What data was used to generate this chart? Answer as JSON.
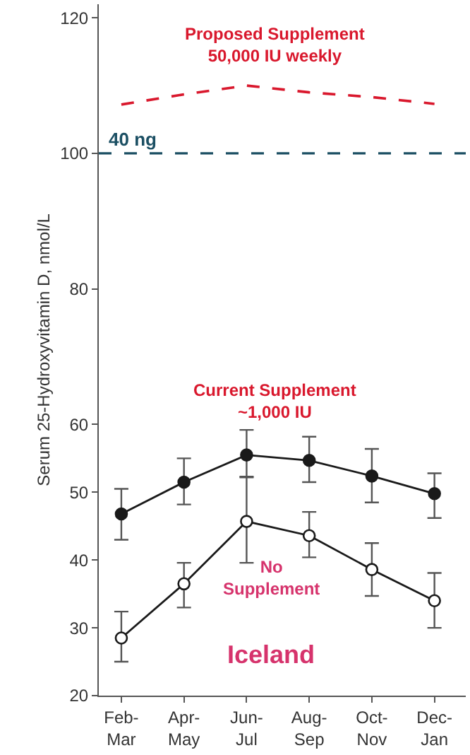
{
  "chart_data": {
    "type": "line",
    "ylabel": "Serum 25-Hydroxyvitamin D, nmol/L",
    "categories": [
      "Feb-Mar",
      "Apr-May",
      "Jun-Jul",
      "Aug-Sep",
      "Oct-Nov",
      "Dec-Jan"
    ],
    "ylim": [
      20,
      122
    ],
    "yticks": [
      20,
      30,
      40,
      50,
      60,
      80,
      100,
      120
    ],
    "legend": false,
    "marker": "circle",
    "series": [
      {
        "name": "Proposed Supplement\n50,000 IU weekly",
        "color": "#d9182d",
        "marker": "none",
        "line_style": "dashed",
        "values": [
          107.2,
          108.7,
          110,
          109,
          108.3,
          107.3
        ]
      },
      {
        "color": "#1a1a1a",
        "values": [
          46.8,
          51.5,
          55.5,
          54.7,
          52.4,
          49.8
        ],
        "errors": [
          [
            43,
            50.5
          ],
          [
            48.2,
            55
          ],
          [
            52.2,
            59.2
          ],
          [
            51.5,
            58.2
          ],
          [
            48.5,
            56.4
          ],
          [
            46.2,
            52.8
          ]
        ]
      },
      {
        "color": "#1a1a1a",
        "values": [
          28.5,
          36.5,
          45.7,
          43.6,
          38.6,
          34
        ],
        "errors": [
          [
            25,
            32.4
          ],
          [
            33,
            39.6
          ],
          [
            39.6,
            52.3
          ],
          [
            40.4,
            47.1
          ],
          [
            34.7,
            42.5
          ],
          [
            30,
            38.1
          ]
        ]
      }
    ],
    "ref_lines": [
      {
        "axis": "y",
        "value": 100,
        "label": "40 ng",
        "color": "#1b4f63",
        "line_style": "dashed"
      }
    ],
    "annotations": [
      "Current Supplement\n~1,000 IU",
      "No\nSupplement",
      "Iceland"
    ]
  }
}
